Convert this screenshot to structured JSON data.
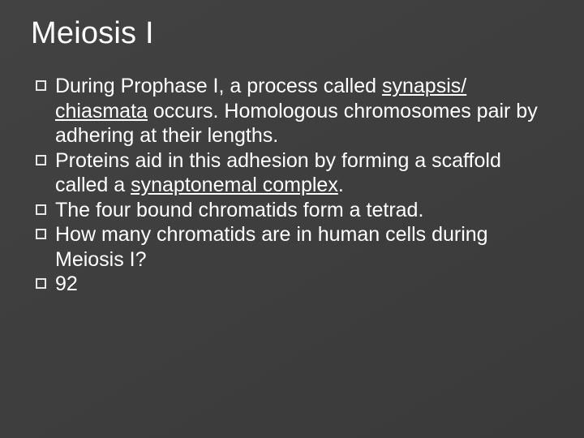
{
  "slide": {
    "title": "Meiosis I",
    "title_fontsize": 38,
    "title_color": "#ffffff",
    "background_color": "#414141",
    "body_fontsize": 25,
    "body_color": "#ffffff",
    "bullet_border_color": "#e6e6e6",
    "bullets": [
      {
        "pre": "During Prophase I, a process called ",
        "underlined": "synapsis/ chiasmata",
        "post": " occurs. Homologous chromosomes pair by adhering at their lengths."
      },
      {
        "pre": "Proteins aid in this adhesion by forming a scaffold called a ",
        "underlined": "synaptonemal complex",
        "post": "."
      },
      {
        "pre": "The four bound chromatids form a tetrad.",
        "underlined": "",
        "post": ""
      },
      {
        "pre": "How many chromatids are in human cells during Meiosis I?",
        "underlined": "",
        "post": ""
      },
      {
        "pre": "92",
        "underlined": "",
        "post": ""
      }
    ]
  }
}
